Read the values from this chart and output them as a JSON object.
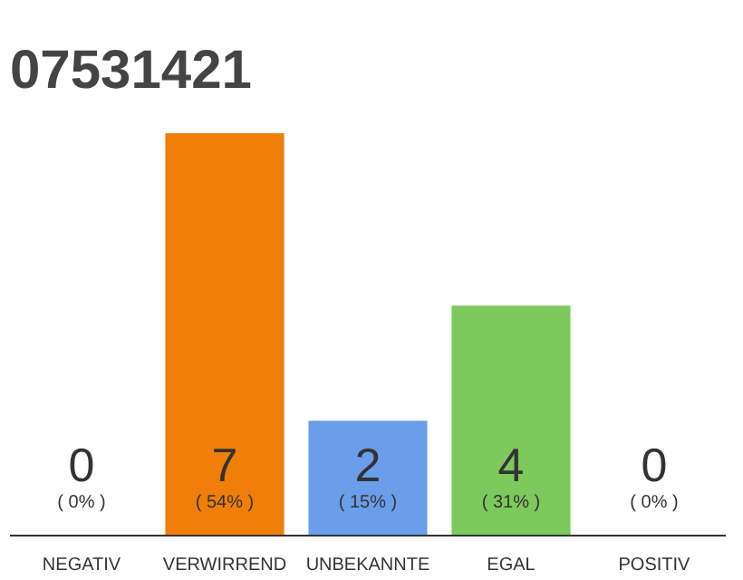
{
  "chart_data": {
    "type": "bar",
    "title": "07531421",
    "categories": [
      "NEGATIV",
      "VERWIRREND",
      "UNBEKANNTE",
      "EGAL",
      "POSITIV"
    ],
    "values": [
      0,
      7,
      2,
      4,
      0
    ],
    "colors": [
      "#eeeeee",
      "#f07f0a",
      "#6a9eea",
      "#7cca5c",
      "#eeeeee"
    ],
    "value_labels": [
      "0",
      "7",
      "2",
      "4",
      "0"
    ],
    "annotations": [
      {
        "text": "( 0% )",
        "x": "NEGATIV",
        "y": 0
      },
      {
        "text": "( 54% )",
        "x": "VERWIRREND",
        "y": 0
      },
      {
        "text": "( 15% )",
        "x": "UNBEKANNTE",
        "y": 0
      },
      {
        "text": "( 31% )",
        "x": "EGAL",
        "y": 0
      },
      {
        "text": "( 0% )",
        "x": "POSITIV",
        "y": 0
      }
    ],
    "tick_labels": "x",
    "grid": false
  }
}
